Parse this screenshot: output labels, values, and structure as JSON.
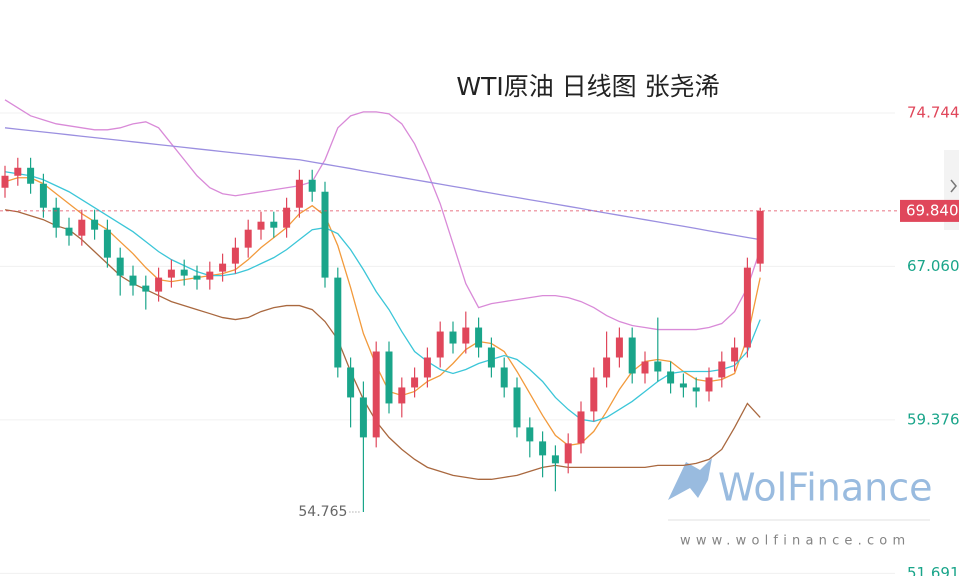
{
  "chart_data": {
    "type": "candlestick",
    "title": "WTI原油 日线图 张尧浠",
    "up_color": "#e0475b",
    "down_color": "#1aa58a",
    "open": [
      71.0,
      71.6,
      72.0,
      71.2,
      70.0,
      69.0,
      68.6,
      69.4,
      68.9,
      67.5,
      66.6,
      66.1,
      65.8,
      66.5,
      66.9,
      66.6,
      66.4,
      66.8,
      67.2,
      68.0,
      68.9,
      69.3,
      69.0,
      70.0,
      71.4,
      70.8,
      66.5,
      62.0,
      60.5,
      58.5,
      62.8,
      60.2,
      61.0,
      61.5,
      62.5,
      63.8,
      63.2,
      64.0,
      63.0,
      62.0,
      61.0,
      59.0,
      58.3,
      57.6,
      57.2,
      58.2,
      59.8,
      61.5,
      62.5,
      63.5,
      61.7,
      62.3,
      61.8,
      61.2,
      61.0,
      60.8,
      61.5,
      62.3,
      63.0,
      67.2
    ],
    "high": [
      72.1,
      72.5,
      72.5,
      71.7,
      70.5,
      69.5,
      69.9,
      69.9,
      69.4,
      68.0,
      67.1,
      66.6,
      67.0,
      67.4,
      67.4,
      67.1,
      67.3,
      67.7,
      68.5,
      69.4,
      69.8,
      69.8,
      70.5,
      71.9,
      71.9,
      71.3,
      67.0,
      62.5,
      61.3,
      63.3,
      63.3,
      61.5,
      62.0,
      63.0,
      64.3,
      64.3,
      64.8,
      64.5,
      63.5,
      62.5,
      61.5,
      59.5,
      58.8,
      58.1,
      58.7,
      60.3,
      62.0,
      63.8,
      64.0,
      64.0,
      62.8,
      64.5,
      62.3,
      61.7,
      61.5,
      62.0,
      62.8,
      63.5,
      67.5,
      70.0
    ],
    "low": [
      70.5,
      71.1,
      70.7,
      69.5,
      68.5,
      68.1,
      68.1,
      68.4,
      67.0,
      65.6,
      65.6,
      64.9,
      65.3,
      66.0,
      66.1,
      65.9,
      65.9,
      66.3,
      66.7,
      67.5,
      68.4,
      68.5,
      68.5,
      69.5,
      70.3,
      66.0,
      61.5,
      59.0,
      54.765,
      58.0,
      59.7,
      59.5,
      60.5,
      61.0,
      62.0,
      62.7,
      62.7,
      62.5,
      61.5,
      60.5,
      58.5,
      57.5,
      56.5,
      55.8,
      56.7,
      57.7,
      59.3,
      61.0,
      62.0,
      61.2,
      61.2,
      61.3,
      60.7,
      60.5,
      60.0,
      60.3,
      61.0,
      61.8,
      62.5,
      66.8
    ],
    "close": [
      71.6,
      72.0,
      71.2,
      70.0,
      69.0,
      68.6,
      69.4,
      68.9,
      67.5,
      66.6,
      66.1,
      65.8,
      66.5,
      66.9,
      66.6,
      66.4,
      66.8,
      67.2,
      68.0,
      68.9,
      69.3,
      69.0,
      70.0,
      71.4,
      70.8,
      66.5,
      62.0,
      60.5,
      58.5,
      62.8,
      60.2,
      61.0,
      61.5,
      62.5,
      63.8,
      63.2,
      64.0,
      63.0,
      62.0,
      61.0,
      59.0,
      58.3,
      57.6,
      57.2,
      58.2,
      59.8,
      61.5,
      62.5,
      63.5,
      61.7,
      62.3,
      61.8,
      61.2,
      61.0,
      60.8,
      61.5,
      62.3,
      63.0,
      67.0,
      69.84
    ],
    "series": [
      {
        "color": "#d98ad8",
        "values": [
          75.4,
          75.0,
          74.6,
          74.4,
          74.2,
          74.1,
          74.0,
          73.9,
          73.9,
          74.0,
          74.2,
          74.3,
          74.0,
          73.2,
          72.4,
          71.6,
          71.0,
          70.7,
          70.6,
          70.7,
          70.8,
          70.9,
          71.0,
          71.1,
          71.3,
          72.4,
          74.0,
          74.6,
          74.8,
          74.8,
          74.7,
          74.2,
          73.2,
          71.8,
          70.2,
          68.2,
          66.2,
          65.0,
          65.2,
          65.3,
          65.4,
          65.5,
          65.6,
          65.6,
          65.5,
          65.3,
          65.0,
          64.6,
          64.3,
          64.1,
          64.0,
          63.9,
          63.9,
          63.9,
          63.9,
          64.0,
          64.2,
          64.8,
          66.0,
          67.9
        ]
      },
      {
        "color": "#a9683f",
        "values": [
          69.9,
          69.8,
          69.6,
          69.4,
          69.1,
          68.9,
          68.4,
          67.8,
          67.2,
          66.6,
          66.2,
          65.9,
          65.6,
          65.3,
          65.1,
          64.9,
          64.7,
          64.5,
          64.4,
          64.5,
          64.8,
          65.0,
          65.1,
          65.1,
          64.9,
          64.3,
          63.4,
          61.8,
          60.4,
          59.3,
          58.5,
          57.9,
          57.4,
          57.0,
          56.8,
          56.6,
          56.5,
          56.4,
          56.4,
          56.5,
          56.6,
          56.8,
          57.0,
          57.1,
          57.0,
          57.0,
          57.0,
          57.0,
          57.0,
          57.0,
          57.0,
          57.1,
          57.1,
          57.1,
          57.2,
          57.4,
          57.9,
          59.0,
          60.2,
          59.5
        ]
      },
      {
        "color": "#9b8fe0",
        "values": [
          74.0,
          73.93,
          73.86,
          73.79,
          73.72,
          73.65,
          73.58,
          73.51,
          73.44,
          73.37,
          73.3,
          73.23,
          73.16,
          73.09,
          73.02,
          72.95,
          72.88,
          72.81,
          72.74,
          72.67,
          72.6,
          72.53,
          72.46,
          72.4,
          72.29,
          72.18,
          72.07,
          71.96,
          71.84,
          71.73,
          71.62,
          71.51,
          71.4,
          71.29,
          71.18,
          71.07,
          70.96,
          70.84,
          70.73,
          70.62,
          70.51,
          70.4,
          70.29,
          70.18,
          70.07,
          69.96,
          69.84,
          69.73,
          69.62,
          69.51,
          69.4,
          69.29,
          69.18,
          69.07,
          68.96,
          68.84,
          68.73,
          68.62,
          68.51,
          68.4
        ]
      },
      {
        "color": "#f29a3c",
        "values": [
          71.3,
          71.5,
          71.5,
          71.2,
          70.7,
          70.2,
          69.7,
          69.3,
          68.9,
          68.3,
          67.7,
          67.0,
          66.4,
          66.3,
          66.4,
          66.5,
          66.6,
          66.7,
          66.9,
          67.4,
          68.0,
          68.5,
          69.0,
          69.7,
          70.1,
          69.6,
          68.1,
          66.0,
          63.7,
          62.1,
          60.8,
          60.6,
          60.8,
          61.3,
          61.6,
          62.2,
          62.9,
          63.3,
          63.2,
          62.8,
          61.8,
          60.7,
          59.6,
          58.6,
          58.1,
          58.2,
          58.8,
          59.8,
          60.9,
          61.8,
          62.3,
          62.4,
          62.3,
          61.8,
          61.4,
          61.3,
          61.4,
          61.7,
          63.5,
          66.5
        ]
      },
      {
        "color": "#3cc6d8",
        "values": [
          71.8,
          71.7,
          71.6,
          71.4,
          71.1,
          70.8,
          70.4,
          70.0,
          69.6,
          69.2,
          68.8,
          68.3,
          67.8,
          67.4,
          67.1,
          66.8,
          66.6,
          66.6,
          66.7,
          66.9,
          67.2,
          67.5,
          67.9,
          68.4,
          68.9,
          69.0,
          68.7,
          67.9,
          66.9,
          65.8,
          64.9,
          63.8,
          62.8,
          62.3,
          61.9,
          61.7,
          61.9,
          62.2,
          62.4,
          62.6,
          62.4,
          61.9,
          61.3,
          60.5,
          59.9,
          59.4,
          59.3,
          59.5,
          59.9,
          60.3,
          60.8,
          61.3,
          61.7,
          61.8,
          61.8,
          61.8,
          61.9,
          62.1,
          62.8,
          64.4
        ]
      }
    ],
    "ylim": [
      51.56,
      80.4
    ],
    "yticks": [
      51.691,
      59.376,
      {
        "value": 67.06,
        "label": "67.060"
      },
      74.744
    ],
    "grid": true,
    "last_price": {
      "value": 69.84,
      "label": "69.840"
    },
    "low_annotation": 54.765,
    "watermark": {
      "brand": "WolFinance",
      "url": "www.wolfinance.com"
    }
  }
}
